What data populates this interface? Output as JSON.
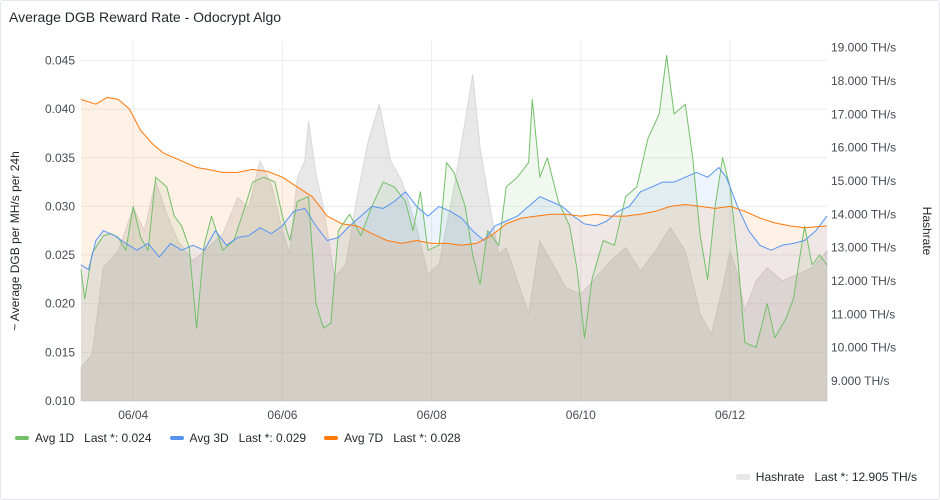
{
  "panel": {
    "title": "Average DGB Reward Rate - Odocrypt Algo"
  },
  "legend": {
    "avg1d": {
      "label": "Avg 1D",
      "value": "Last *: 0.024"
    },
    "avg3d": {
      "label": "Avg 3D",
      "value": "Last *: 0.029"
    },
    "avg7d": {
      "label": "Avg 7D",
      "value": "Last *: 0.028"
    },
    "hashrate": {
      "label": "Hashrate",
      "value": "Last *: 12.905 TH/s"
    }
  },
  "chart_data": {
    "type": "line",
    "title": "Average DGB Reward Rate - Odocrypt Algo",
    "ylabel": "~ Average DGB per MH/s per 24h",
    "y2label": "Hashrate",
    "ylim": [
      0.01,
      0.047
    ],
    "y2lim": [
      8.4,
      19.2
    ],
    "xlim": [
      3.3,
      13.3
    ],
    "x_unit": "day of month (June)",
    "x_ticks": [
      {
        "x": 4,
        "label": "06/04"
      },
      {
        "x": 6,
        "label": "06/06"
      },
      {
        "x": 8,
        "label": "06/08"
      },
      {
        "x": 10,
        "label": "06/10"
      },
      {
        "x": 12,
        "label": "06/12"
      }
    ],
    "y_ticks": [
      {
        "v": 0.01,
        "label": "0.010"
      },
      {
        "v": 0.015,
        "label": "0.015"
      },
      {
        "v": 0.02,
        "label": "0.020"
      },
      {
        "v": 0.025,
        "label": "0.025"
      },
      {
        "v": 0.03,
        "label": "0.030"
      },
      {
        "v": 0.035,
        "label": "0.035"
      },
      {
        "v": 0.04,
        "label": "0.040"
      },
      {
        "v": 0.045,
        "label": "0.045"
      }
    ],
    "y2_ticks": [
      {
        "v": 9,
        "label": "9.000 TH/s"
      },
      {
        "v": 10,
        "label": "10.000 TH/s"
      },
      {
        "v": 11,
        "label": "11.000 TH/s"
      },
      {
        "v": 12,
        "label": "12.000 TH/s"
      },
      {
        "v": 13,
        "label": "13.000 TH/s"
      },
      {
        "v": 14,
        "label": "14.000 TH/s"
      },
      {
        "v": 15,
        "label": "15.000 TH/s"
      },
      {
        "v": 16,
        "label": "16.000 TH/s"
      },
      {
        "v": 17,
        "label": "17.000 TH/s"
      },
      {
        "v": 18,
        "label": "18.000 TH/s"
      },
      {
        "v": 19,
        "label": "19.000 TH/s"
      }
    ],
    "grid": true,
    "legend_placement": "bottom",
    "series": [
      {
        "name": "Hashrate",
        "axis": "right",
        "color": "#c8c8c8",
        "style": "area",
        "points": [
          [
            3.3,
            9.4
          ],
          [
            3.45,
            9.8
          ],
          [
            3.6,
            12.4
          ],
          [
            3.8,
            12.9
          ],
          [
            4.0,
            14.2
          ],
          [
            4.15,
            13.5
          ],
          [
            4.3,
            15.0
          ],
          [
            4.45,
            14.0
          ],
          [
            4.6,
            13.2
          ],
          [
            4.8,
            12.6
          ],
          [
            5.0,
            13.0
          ],
          [
            5.2,
            13.4
          ],
          [
            5.4,
            14.5
          ],
          [
            5.55,
            14.2
          ],
          [
            5.7,
            15.6
          ],
          [
            5.85,
            14.9
          ],
          [
            6.0,
            13.5
          ],
          [
            6.1,
            12.8
          ],
          [
            6.2,
            15.1
          ],
          [
            6.3,
            15.6
          ],
          [
            6.35,
            16.8
          ],
          [
            6.45,
            15.2
          ],
          [
            6.55,
            14.2
          ],
          [
            6.7,
            12.1
          ],
          [
            6.85,
            12.5
          ],
          [
            7.0,
            14.5
          ],
          [
            7.15,
            16.2
          ],
          [
            7.3,
            17.3
          ],
          [
            7.45,
            15.6
          ],
          [
            7.6,
            15.0
          ],
          [
            7.8,
            13.6
          ],
          [
            7.95,
            12.2
          ],
          [
            8.1,
            12.5
          ],
          [
            8.3,
            14.8
          ],
          [
            8.45,
            16.8
          ],
          [
            8.55,
            18.2
          ],
          [
            8.65,
            16.0
          ],
          [
            8.8,
            14.0
          ],
          [
            8.9,
            12.8
          ],
          [
            9.0,
            13.0
          ],
          [
            9.15,
            12.0
          ],
          [
            9.3,
            11.0
          ],
          [
            9.45,
            13.2
          ],
          [
            9.6,
            12.6
          ],
          [
            9.8,
            11.8
          ],
          [
            10.0,
            11.6
          ],
          [
            10.2,
            12.1
          ],
          [
            10.4,
            12.6
          ],
          [
            10.6,
            13.0
          ],
          [
            10.8,
            12.3
          ],
          [
            11.0,
            12.9
          ],
          [
            11.2,
            13.6
          ],
          [
            11.4,
            12.9
          ],
          [
            11.6,
            11.0
          ],
          [
            11.75,
            10.4
          ],
          [
            11.9,
            11.8
          ],
          [
            12.0,
            12.9
          ],
          [
            12.1,
            12.2
          ],
          [
            12.2,
            11.1
          ],
          [
            12.35,
            12.0
          ],
          [
            12.5,
            12.4
          ],
          [
            12.7,
            12.0
          ],
          [
            12.9,
            12.2
          ],
          [
            13.1,
            12.4
          ],
          [
            13.3,
            12.9
          ]
        ]
      },
      {
        "name": "Avg 1D",
        "axis": "left",
        "color": "#73bf69",
        "style": "line",
        "points": [
          [
            3.3,
            0.0235
          ],
          [
            3.35,
            0.0205
          ],
          [
            3.45,
            0.0252
          ],
          [
            3.6,
            0.027
          ],
          [
            3.7,
            0.0272
          ],
          [
            3.8,
            0.0268
          ],
          [
            3.9,
            0.0255
          ],
          [
            4.0,
            0.03
          ],
          [
            4.1,
            0.0268
          ],
          [
            4.2,
            0.0255
          ],
          [
            4.3,
            0.033
          ],
          [
            4.45,
            0.032
          ],
          [
            4.55,
            0.029
          ],
          [
            4.65,
            0.028
          ],
          [
            4.75,
            0.0258
          ],
          [
            4.85,
            0.0175
          ],
          [
            4.95,
            0.026
          ],
          [
            5.05,
            0.029
          ],
          [
            5.2,
            0.0255
          ],
          [
            5.35,
            0.0265
          ],
          [
            5.5,
            0.03
          ],
          [
            5.6,
            0.0325
          ],
          [
            5.75,
            0.033
          ],
          [
            5.9,
            0.0325
          ],
          [
            6.0,
            0.029
          ],
          [
            6.1,
            0.0265
          ],
          [
            6.2,
            0.0305
          ],
          [
            6.35,
            0.031
          ],
          [
            6.45,
            0.02
          ],
          [
            6.55,
            0.0175
          ],
          [
            6.65,
            0.018
          ],
          [
            6.75,
            0.0275
          ],
          [
            6.9,
            0.0292
          ],
          [
            7.05,
            0.027
          ],
          [
            7.2,
            0.03
          ],
          [
            7.35,
            0.0325
          ],
          [
            7.5,
            0.032
          ],
          [
            7.65,
            0.0305
          ],
          [
            7.75,
            0.0275
          ],
          [
            7.85,
            0.0315
          ],
          [
            7.95,
            0.0255
          ],
          [
            8.1,
            0.026
          ],
          [
            8.2,
            0.0345
          ],
          [
            8.3,
            0.0335
          ],
          [
            8.45,
            0.03
          ],
          [
            8.55,
            0.025
          ],
          [
            8.65,
            0.022
          ],
          [
            8.75,
            0.0275
          ],
          [
            8.9,
            0.026
          ],
          [
            9.0,
            0.032
          ],
          [
            9.15,
            0.033
          ],
          [
            9.3,
            0.0345
          ],
          [
            9.35,
            0.041
          ],
          [
            9.45,
            0.033
          ],
          [
            9.55,
            0.035
          ],
          [
            9.7,
            0.0305
          ],
          [
            9.85,
            0.028
          ],
          [
            9.95,
            0.0235
          ],
          [
            10.05,
            0.0165
          ],
          [
            10.15,
            0.0225
          ],
          [
            10.3,
            0.0265
          ],
          [
            10.45,
            0.026
          ],
          [
            10.6,
            0.031
          ],
          [
            10.75,
            0.032
          ],
          [
            10.9,
            0.037
          ],
          [
            11.05,
            0.0395
          ],
          [
            11.15,
            0.0455
          ],
          [
            11.25,
            0.0395
          ],
          [
            11.4,
            0.0405
          ],
          [
            11.5,
            0.035
          ],
          [
            11.6,
            0.027
          ],
          [
            11.7,
            0.0225
          ],
          [
            11.8,
            0.03
          ],
          [
            11.9,
            0.035
          ],
          [
            12.0,
            0.032
          ],
          [
            12.1,
            0.025
          ],
          [
            12.2,
            0.016
          ],
          [
            12.35,
            0.0155
          ],
          [
            12.5,
            0.02
          ],
          [
            12.6,
            0.0165
          ],
          [
            12.75,
            0.0185
          ],
          [
            12.85,
            0.0205
          ],
          [
            13.0,
            0.028
          ],
          [
            13.1,
            0.024
          ],
          [
            13.2,
            0.025
          ],
          [
            13.3,
            0.024
          ]
        ]
      },
      {
        "name": "Avg 3D",
        "axis": "left",
        "color": "#5794f2",
        "style": "line",
        "points": [
          [
            3.3,
            0.024
          ],
          [
            3.4,
            0.0235
          ],
          [
            3.5,
            0.0265
          ],
          [
            3.6,
            0.0275
          ],
          [
            3.75,
            0.027
          ],
          [
            3.9,
            0.0262
          ],
          [
            4.05,
            0.0255
          ],
          [
            4.2,
            0.0262
          ],
          [
            4.35,
            0.0248
          ],
          [
            4.5,
            0.0262
          ],
          [
            4.65,
            0.0255
          ],
          [
            4.8,
            0.026
          ],
          [
            4.95,
            0.0255
          ],
          [
            5.1,
            0.0275
          ],
          [
            5.25,
            0.026
          ],
          [
            5.4,
            0.0268
          ],
          [
            5.55,
            0.027
          ],
          [
            5.7,
            0.0278
          ],
          [
            5.85,
            0.0272
          ],
          [
            6.0,
            0.028
          ],
          [
            6.15,
            0.0295
          ],
          [
            6.3,
            0.0298
          ],
          [
            6.45,
            0.028
          ],
          [
            6.6,
            0.0265
          ],
          [
            6.75,
            0.0268
          ],
          [
            6.9,
            0.028
          ],
          [
            7.05,
            0.029
          ],
          [
            7.2,
            0.03
          ],
          [
            7.35,
            0.0298
          ],
          [
            7.5,
            0.0305
          ],
          [
            7.65,
            0.0315
          ],
          [
            7.8,
            0.03
          ],
          [
            7.95,
            0.029
          ],
          [
            8.1,
            0.03
          ],
          [
            8.25,
            0.0295
          ],
          [
            8.4,
            0.0288
          ],
          [
            8.55,
            0.0275
          ],
          [
            8.7,
            0.0265
          ],
          [
            8.85,
            0.028
          ],
          [
            9.0,
            0.0285
          ],
          [
            9.15,
            0.029
          ],
          [
            9.3,
            0.03
          ],
          [
            9.45,
            0.031
          ],
          [
            9.6,
            0.0305
          ],
          [
            9.75,
            0.03
          ],
          [
            9.9,
            0.029
          ],
          [
            10.05,
            0.0282
          ],
          [
            10.2,
            0.028
          ],
          [
            10.35,
            0.0285
          ],
          [
            10.5,
            0.0295
          ],
          [
            10.65,
            0.03
          ],
          [
            10.8,
            0.0315
          ],
          [
            10.95,
            0.032
          ],
          [
            11.1,
            0.0325
          ],
          [
            11.25,
            0.0325
          ],
          [
            11.4,
            0.033
          ],
          [
            11.55,
            0.0335
          ],
          [
            11.7,
            0.033
          ],
          [
            11.85,
            0.034
          ],
          [
            11.95,
            0.033
          ],
          [
            12.1,
            0.03
          ],
          [
            12.25,
            0.0275
          ],
          [
            12.4,
            0.026
          ],
          [
            12.55,
            0.0255
          ],
          [
            12.7,
            0.026
          ],
          [
            12.85,
            0.0262
          ],
          [
            13.0,
            0.0265
          ],
          [
            13.15,
            0.0275
          ],
          [
            13.3,
            0.029
          ]
        ]
      },
      {
        "name": "Avg 7D",
        "axis": "left",
        "color": "#ff780a",
        "style": "line",
        "points": [
          [
            3.3,
            0.041
          ],
          [
            3.5,
            0.0405
          ],
          [
            3.65,
            0.0412
          ],
          [
            3.8,
            0.041
          ],
          [
            3.95,
            0.04
          ],
          [
            4.1,
            0.0378
          ],
          [
            4.25,
            0.0365
          ],
          [
            4.4,
            0.0355
          ],
          [
            4.55,
            0.035
          ],
          [
            4.7,
            0.0345
          ],
          [
            4.85,
            0.034
          ],
          [
            5.0,
            0.0338
          ],
          [
            5.2,
            0.0335
          ],
          [
            5.4,
            0.0335
          ],
          [
            5.6,
            0.0338
          ],
          [
            5.8,
            0.0336
          ],
          [
            6.0,
            0.033
          ],
          [
            6.2,
            0.032
          ],
          [
            6.4,
            0.031
          ],
          [
            6.6,
            0.029
          ],
          [
            6.8,
            0.0282
          ],
          [
            7.0,
            0.028
          ],
          [
            7.2,
            0.0272
          ],
          [
            7.4,
            0.0265
          ],
          [
            7.6,
            0.0262
          ],
          [
            7.8,
            0.0265
          ],
          [
            8.0,
            0.0262
          ],
          [
            8.2,
            0.0262
          ],
          [
            8.4,
            0.026
          ],
          [
            8.6,
            0.0262
          ],
          [
            8.8,
            0.027
          ],
          [
            9.0,
            0.0282
          ],
          [
            9.2,
            0.0288
          ],
          [
            9.4,
            0.029
          ],
          [
            9.6,
            0.0292
          ],
          [
            9.8,
            0.0292
          ],
          [
            10.0,
            0.029
          ],
          [
            10.2,
            0.0292
          ],
          [
            10.4,
            0.029
          ],
          [
            10.6,
            0.029
          ],
          [
            10.8,
            0.0292
          ],
          [
            11.0,
            0.0295
          ],
          [
            11.2,
            0.03
          ],
          [
            11.4,
            0.0302
          ],
          [
            11.6,
            0.03
          ],
          [
            11.8,
            0.0298
          ],
          [
            12.0,
            0.03
          ],
          [
            12.2,
            0.0295
          ],
          [
            12.4,
            0.0288
          ],
          [
            12.6,
            0.0283
          ],
          [
            12.8,
            0.028
          ],
          [
            13.0,
            0.0278
          ],
          [
            13.3,
            0.028
          ]
        ]
      }
    ]
  }
}
